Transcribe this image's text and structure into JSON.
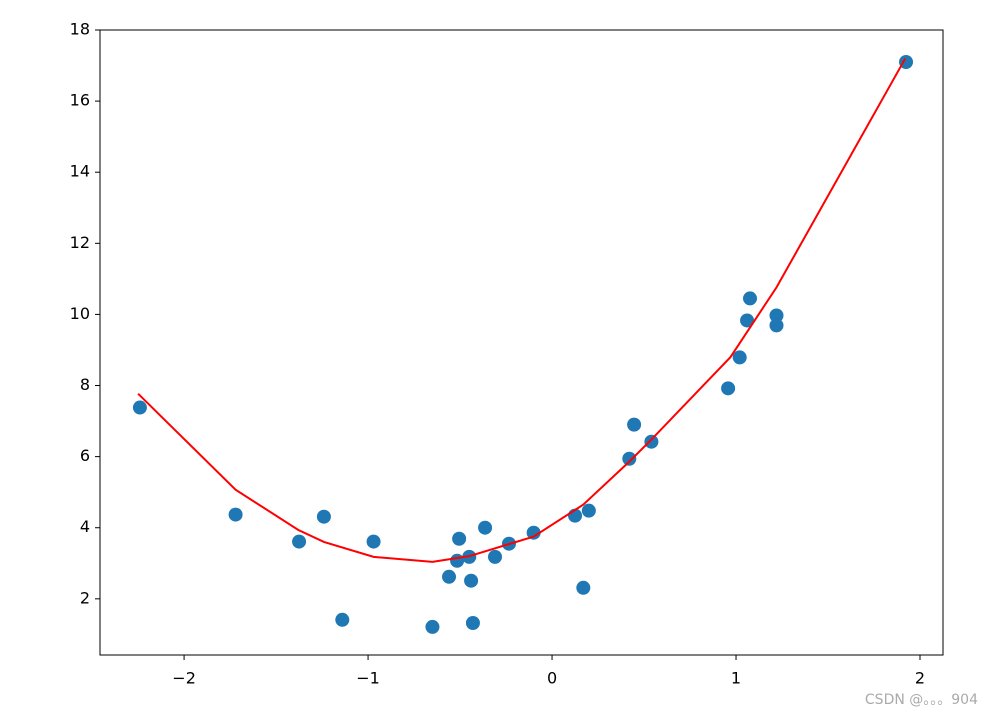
{
  "chart_data": {
    "type": "scatter",
    "xlim": [
      -2.457,
      2.125
    ],
    "ylim": [
      0.42,
      18.0
    ],
    "xticks": [
      {
        "value": -2,
        "label": "−2"
      },
      {
        "value": -1,
        "label": "−1"
      },
      0,
      1,
      2
    ],
    "yticks": [
      2,
      4,
      6,
      8,
      10,
      12,
      14,
      16,
      18
    ],
    "series": [
      {
        "type": "scatter",
        "color": "#1f77b4",
        "x": [
          -2.24,
          -1.72,
          -1.375,
          -1.24,
          -1.14,
          -0.97,
          -0.65,
          -0.56,
          -0.505,
          -0.516,
          -0.45,
          -0.44,
          -0.43,
          -0.364,
          -0.31,
          -0.234,
          -0.1,
          0.125,
          0.17,
          0.2,
          0.42,
          0.446,
          0.54,
          0.957,
          1.02,
          1.06,
          1.076,
          1.22,
          1.22,
          1.924
        ],
        "values": [
          7.38,
          4.37,
          3.61,
          4.31,
          1.41,
          3.61,
          1.21,
          2.62,
          3.69,
          3.07,
          3.18,
          2.51,
          1.32,
          4.0,
          3.18,
          3.55,
          3.86,
          4.34,
          2.31,
          4.48,
          5.94,
          6.9,
          6.42,
          7.92,
          8.79,
          9.83,
          10.45,
          9.97,
          9.69,
          17.1
        ]
      },
      {
        "type": "line",
        "color": "#ff0000",
        "x": [
          -2.25,
          -1.72,
          -1.38,
          -1.24,
          -0.97,
          -0.65,
          -0.45,
          -0.1,
          0.17,
          0.42,
          0.54,
          0.97,
          1.22,
          1.92
        ],
        "values": [
          7.77,
          5.07,
          3.94,
          3.6,
          3.18,
          3.04,
          3.2,
          3.75,
          4.65,
          5.86,
          6.48,
          8.8,
          10.76,
          17.2
        ]
      }
    ],
    "watermark": "CSDN @。。。904"
  }
}
